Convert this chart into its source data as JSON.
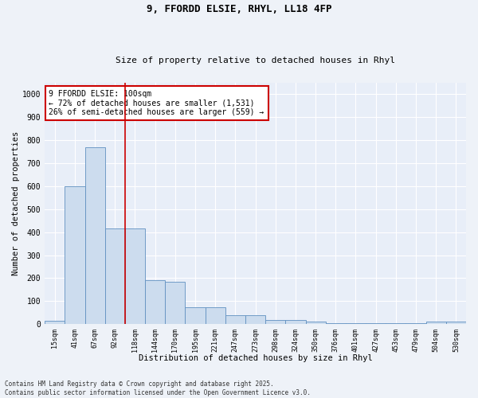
{
  "title1": "9, FFORDD ELSIE, RHYL, LL18 4FP",
  "title2": "Size of property relative to detached houses in Rhyl",
  "xlabel": "Distribution of detached houses by size in Rhyl",
  "ylabel": "Number of detached properties",
  "categories": [
    "15sqm",
    "41sqm",
    "67sqm",
    "92sqm",
    "118sqm",
    "144sqm",
    "170sqm",
    "195sqm",
    "221sqm",
    "247sqm",
    "273sqm",
    "298sqm",
    "324sqm",
    "350sqm",
    "376sqm",
    "401sqm",
    "427sqm",
    "453sqm",
    "479sqm",
    "504sqm",
    "530sqm"
  ],
  "values": [
    15,
    600,
    770,
    415,
    415,
    190,
    185,
    75,
    75,
    40,
    40,
    20,
    20,
    10,
    5,
    5,
    5,
    5,
    5,
    10,
    10
  ],
  "bar_color": "#ccdcee",
  "bar_edge_color": "#6090c0",
  "red_line_x": 3.5,
  "annotation_title": "9 FFORDD ELSIE: 100sqm",
  "annotation_line1": "← 72% of detached houses are smaller (1,531)",
  "annotation_line2": "26% of semi-detached houses are larger (559) →",
  "annotation_box_color": "#ffffff",
  "annotation_box_edge": "#cc0000",
  "red_line_color": "#cc0000",
  "ylim": [
    0,
    1050
  ],
  "yticks": [
    0,
    100,
    200,
    300,
    400,
    500,
    600,
    700,
    800,
    900,
    1000
  ],
  "footnote1": "Contains HM Land Registry data © Crown copyright and database right 2025.",
  "footnote2": "Contains public sector information licensed under the Open Government Licence v3.0.",
  "bg_color": "#eef2f8",
  "plot_bg_color": "#e8eef8"
}
